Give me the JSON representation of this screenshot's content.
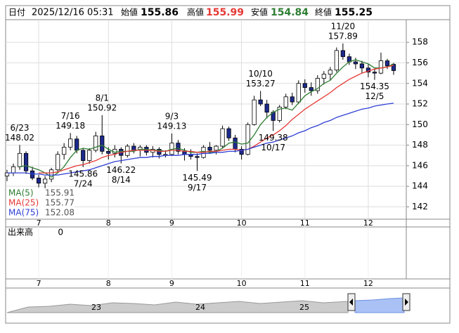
{
  "chart_data": {
    "type": "candlestick",
    "header": {
      "date_label": "日付",
      "date": "2025/12/16 05:31",
      "open_label": "始値",
      "open": 155.86,
      "high_label": "高値",
      "high": 155.99,
      "low_label": "安値",
      "low": 154.84,
      "close_label": "終値",
      "close": 155.25
    },
    "candles": [
      [
        145.0,
        145.6,
        144.5,
        145.3
      ],
      [
        145.3,
        146.2,
        145.0,
        145.9
      ],
      [
        145.9,
        148.02,
        145.6,
        147.2
      ],
      [
        147.2,
        147.4,
        145.2,
        145.5
      ],
      [
        145.5,
        145.9,
        144.6,
        144.8
      ],
      [
        144.8,
        145.1,
        143.9,
        144.3
      ],
      [
        144.3,
        145.0,
        143.8,
        144.7
      ],
      [
        144.7,
        145.8,
        144.4,
        145.6
      ],
      [
        145.6,
        147.4,
        145.3,
        147.1
      ],
      [
        147.1,
        148.2,
        146.6,
        147.8
      ],
      [
        147.8,
        149.18,
        147.5,
        148.6
      ],
      [
        148.6,
        148.9,
        147.2,
        147.5
      ],
      [
        147.5,
        147.7,
        145.86,
        146.5
      ],
      [
        146.5,
        147.7,
        146.2,
        147.5
      ],
      [
        147.5,
        149.3,
        147.3,
        148.9
      ],
      [
        148.9,
        150.92,
        147.1,
        147.4
      ],
      [
        147.4,
        147.8,
        146.6,
        147.2
      ],
      [
        147.2,
        148.0,
        146.8,
        147.6
      ],
      [
        147.6,
        147.8,
        146.22,
        147.0
      ],
      [
        147.0,
        148.1,
        146.8,
        147.9
      ],
      [
        147.9,
        148.2,
        147.2,
        147.5
      ],
      [
        147.5,
        148.0,
        146.9,
        147.8
      ],
      [
        147.8,
        148.0,
        147.0,
        147.3
      ],
      [
        147.3,
        147.9,
        146.8,
        147.6
      ],
      [
        147.6,
        147.8,
        146.7,
        147.1
      ],
      [
        147.1,
        147.5,
        146.8,
        147.1
      ],
      [
        147.1,
        149.13,
        147.0,
        148.2
      ],
      [
        148.2,
        148.5,
        147.1,
        147.4
      ],
      [
        147.4,
        147.7,
        146.5,
        147.1
      ],
      [
        147.1,
        147.6,
        146.6,
        146.9
      ],
      [
        146.9,
        147.2,
        145.49,
        146.8
      ],
      [
        146.8,
        148.0,
        146.7,
        147.8
      ],
      [
        147.8,
        148.3,
        147.2,
        147.5
      ],
      [
        147.5,
        148.0,
        147.1,
        147.9
      ],
      [
        147.9,
        149.9,
        147.7,
        149.6
      ],
      [
        149.6,
        149.8,
        148.4,
        148.7
      ],
      [
        148.7,
        149.0,
        147.3,
        147.6
      ],
      [
        147.6,
        147.9,
        146.6,
        147.1
      ],
      [
        147.1,
        150.2,
        147.0,
        150.0
      ],
      [
        150.0,
        152.8,
        149.9,
        152.4
      ],
      [
        152.4,
        153.27,
        151.8,
        152.0
      ],
      [
        152.0,
        152.4,
        150.6,
        151.2
      ],
      [
        151.2,
        151.4,
        149.38,
        150.4
      ],
      [
        150.4,
        151.9,
        150.2,
        151.7
      ],
      [
        151.7,
        153.0,
        151.5,
        152.7
      ],
      [
        152.7,
        153.1,
        151.9,
        152.2
      ],
      [
        152.2,
        154.3,
        152.0,
        154.0
      ],
      [
        154.0,
        154.4,
        153.1,
        153.6
      ],
      [
        153.6,
        154.1,
        152.8,
        153.3
      ],
      [
        153.3,
        154.8,
        153.0,
        154.5
      ],
      [
        154.5,
        155.2,
        153.9,
        154.9
      ],
      [
        154.9,
        155.6,
        154.3,
        155.3
      ],
      [
        155.3,
        157.5,
        155.1,
        157.2
      ],
      [
        157.2,
        157.89,
        156.3,
        156.6
      ],
      [
        156.6,
        156.9,
        155.8,
        156.1
      ],
      [
        156.1,
        156.5,
        155.4,
        155.9
      ],
      [
        155.9,
        156.2,
        155.0,
        155.5
      ],
      [
        155.5,
        155.9,
        154.6,
        155.1
      ],
      [
        155.1,
        155.4,
        154.35,
        155.0
      ],
      [
        155.0,
        157.0,
        154.9,
        156.2
      ],
      [
        156.2,
        156.4,
        155.4,
        155.7
      ],
      [
        155.86,
        155.99,
        154.84,
        155.25
      ]
    ],
    "up_color": "#ffffff",
    "down_color": "#1c2a8c",
    "series": [
      {
        "name": "MA(5)",
        "color": "#2e7d32",
        "values": [
          null,
          null,
          145.9,
          146.0,
          145.8,
          145.6,
          145.3,
          144.9,
          145.3,
          145.9,
          146.8,
          147.5,
          147.7,
          147.6,
          147.8,
          148.0,
          147.6,
          147.3,
          147.4,
          147.4,
          147.4,
          147.6,
          147.6,
          147.5,
          147.5,
          147.4,
          147.6,
          147.7,
          147.5,
          147.3,
          147.3,
          147.4,
          147.3,
          147.4,
          147.7,
          148.2,
          148.3,
          148.1,
          148.2,
          149.0,
          150.0,
          150.7,
          151.2,
          151.5,
          151.6,
          151.4,
          152.1,
          152.8,
          153.2,
          153.5,
          154.0,
          154.3,
          155.0,
          155.6,
          156.1,
          156.3,
          156.1,
          155.9,
          155.5,
          155.5,
          155.6,
          155.91
        ]
      },
      {
        "name": "MA(25)",
        "color": "#e53935",
        "values": [
          null,
          null,
          null,
          null,
          null,
          145.3,
          145.3,
          145.3,
          145.4,
          145.6,
          145.8,
          146.0,
          146.1,
          146.3,
          146.5,
          146.8,
          147.0,
          147.1,
          147.3,
          147.4,
          147.5,
          147.5,
          147.5,
          147.5,
          147.4,
          147.4,
          147.5,
          147.5,
          147.4,
          147.4,
          147.3,
          147.3,
          147.4,
          147.4,
          147.5,
          147.6,
          147.6,
          147.5,
          147.6,
          147.9,
          148.3,
          148.7,
          149.0,
          149.4,
          149.9,
          150.5,
          151.0,
          151.5,
          151.9,
          152.3,
          152.7,
          153.1,
          153.6,
          154.0,
          154.4,
          154.7,
          155.0,
          155.2,
          155.4,
          155.5,
          155.6,
          155.77
        ]
      },
      {
        "name": "MA(75)",
        "color": "#2f3fd6",
        "values": [
          145.3,
          145.3,
          145.3,
          145.3,
          145.2,
          145.2,
          145.1,
          145.1,
          145.1,
          145.2,
          145.3,
          145.4,
          145.5,
          145.6,
          145.8,
          146.0,
          146.2,
          146.4,
          146.5,
          146.6,
          146.7,
          146.8,
          146.8,
          146.9,
          146.9,
          147.0,
          147.0,
          147.0,
          147.1,
          147.1,
          147.1,
          147.2,
          147.2,
          147.3,
          147.3,
          147.4,
          147.4,
          147.5,
          147.6,
          147.8,
          148.0,
          148.2,
          148.3,
          148.5,
          148.7,
          148.9,
          149.2,
          149.4,
          149.7,
          149.9,
          150.2,
          150.4,
          150.7,
          150.9,
          151.1,
          151.3,
          151.5,
          151.6,
          151.8,
          151.9,
          152.0,
          152.08
        ]
      }
    ],
    "annotations": [
      {
        "date": "6/23",
        "value": 148.02
      },
      {
        "date": "7/16",
        "value": 149.18
      },
      {
        "date": "7/24",
        "value": 145.86
      },
      {
        "date": "8/1",
        "value": 150.92
      },
      {
        "date": "8/14",
        "value": 146.22
      },
      {
        "date": "9/3",
        "value": 149.13
      },
      {
        "date": "9/17",
        "value": 145.49
      },
      {
        "date": "10/10",
        "value": 153.27
      },
      {
        "date": "10/17",
        "value": 149.38
      },
      {
        "date": "11/20",
        "value": 157.89
      },
      {
        "date": "12/5",
        "value": 154.35
      }
    ],
    "ylim": [
      140.8,
      160.2
    ],
    "yticks": [
      142,
      144,
      146,
      148,
      150,
      152,
      154,
      156,
      158
    ],
    "grid": true,
    "xticks": [
      {
        "value": 5,
        "label": "7"
      },
      {
        "value": 16,
        "label": "8"
      },
      {
        "value": 26,
        "label": "9"
      },
      {
        "value": 37,
        "label": "10"
      },
      {
        "value": 47,
        "label": "11"
      },
      {
        "value": 57,
        "label": "12"
      }
    ],
    "volume_label": "出来高",
    "volume": 0,
    "overview_ticks": [
      23,
      24,
      25
    ]
  }
}
